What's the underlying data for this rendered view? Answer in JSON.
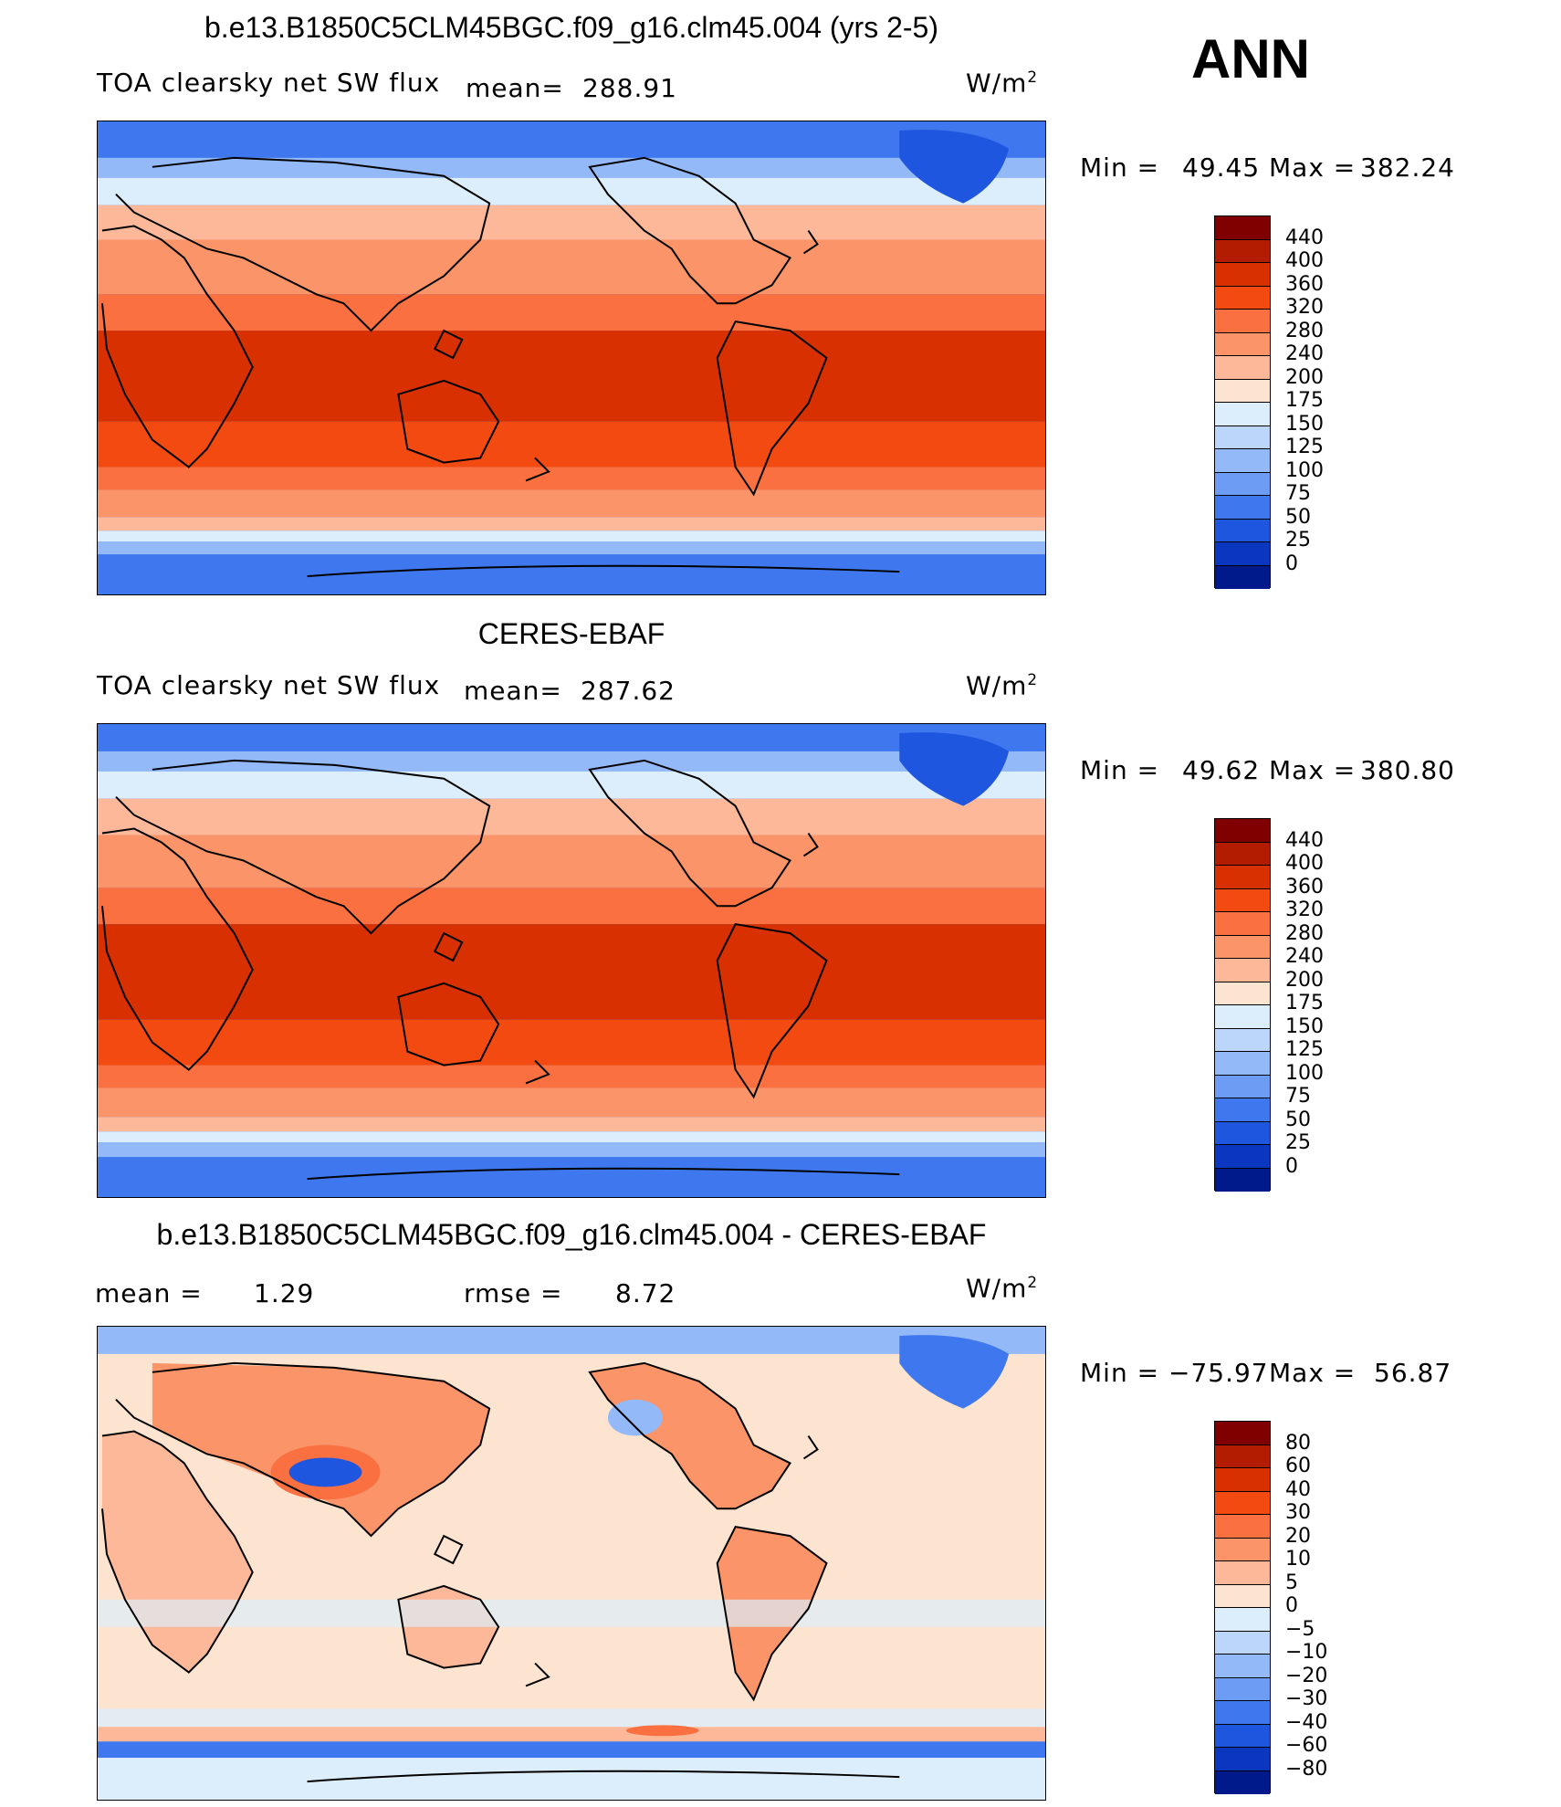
{
  "season": "ANN",
  "panels": [
    {
      "title": "b.e13.B1850C5CLM45BGC.f09_g16.clm45.004 (yrs 2-5)",
      "variable": "TOA clearsky net SW flux",
      "stat_label": "mean=",
      "stat_value": "288.91",
      "units": "W/m",
      "units_exp": "2",
      "min_label": "Min =",
      "min_value": "49.45",
      "max_label": "Max =",
      "max_value": "382.24"
    },
    {
      "title": "CERES-EBAF",
      "variable": "TOA clearsky net SW flux",
      "stat_label": "mean=",
      "stat_value": "287.62",
      "units": "W/m",
      "units_exp": "2",
      "min_label": "Min =",
      "min_value": "49.62",
      "max_label": "Max =",
      "max_value": "380.80"
    },
    {
      "title": "b.e13.B1850C5CLM45BGC.f09_g16.clm45.004 - CERES-EBAF",
      "mean_label": "mean =",
      "mean_value": "1.29",
      "rmse_label": "rmse =",
      "rmse_value": "8.72",
      "units": "W/m",
      "units_exp": "2",
      "min_label": "Min =",
      "min_value": "−75.97",
      "max_label": "Max =",
      "max_value": "56.87"
    }
  ],
  "legend_abs": {
    "labels": [
      "440",
      "400",
      "360",
      "320",
      "280",
      "240",
      "200",
      "175",
      "150",
      "125",
      "100",
      "75",
      "50",
      "25",
      "0"
    ],
    "colors": [
      "#800000",
      "#b31c00",
      "#d83000",
      "#f24a10",
      "#fa7040",
      "#fb9468",
      "#fcb898",
      "#fde4d0",
      "#dceefb",
      "#bcd6fb",
      "#94b9f8",
      "#6c9cf4",
      "#3f78ee",
      "#1f56e0",
      "#0a36c0",
      "#001a8c"
    ]
  },
  "legend_diff": {
    "labels": [
      "80",
      "60",
      "40",
      "30",
      "20",
      "10",
      "5",
      "0",
      "−5",
      "−10",
      "−20",
      "−30",
      "−40",
      "−60",
      "−80"
    ],
    "colors": [
      "#800000",
      "#b31c00",
      "#d83000",
      "#f24a10",
      "#fa7040",
      "#fb9468",
      "#fcb898",
      "#fde4d0",
      "#dceefb",
      "#bcd6fb",
      "#94b9f8",
      "#6c9cf4",
      "#3f78ee",
      "#1f56e0",
      "#0a36c0",
      "#001a8c"
    ]
  }
}
